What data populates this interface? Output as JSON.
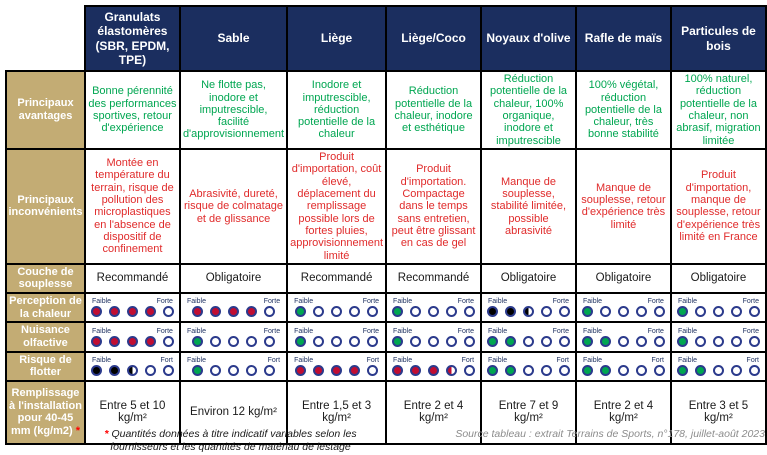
{
  "table": {
    "scale_left_label": "Faible",
    "columns": [
      "Granulats élastomères (SBR, EPDM, TPE)",
      "Sable",
      "Liège",
      "Liège/Coco",
      "Noyaux d'olive",
      "Rafle de maïs",
      "Particules de bois"
    ],
    "rows": [
      {
        "label": "Principaux avantages",
        "type": "text",
        "color": "green",
        "cells": [
          "Bonne pérennité des performances sportives, retour d'expérience",
          "Ne flotte pas, inodore et imputrescible, facilité d'approvisionnement",
          "Inodore et imputrescible, réduction potentielle de la chaleur",
          "Réduction potentielle de la chaleur, inodore et esthétique",
          "Réduction potentielle de la chaleur, 100% organique, inodore et imputrescible",
          "100% végétal, réduction potentielle de la chaleur, très bonne stabilité",
          "100% naturel, réduction potentielle de la chaleur, non abrasif, migration limitée"
        ]
      },
      {
        "label": "Principaux inconvénients",
        "type": "text",
        "color": "red",
        "cells": [
          "Montée en température du terrain, risque de pollution des microplastiques en l'absence de dispositif de confinement",
          "Abrasivité, dureté, risque de colmatage et de glissance",
          "Produit d'importation, coût élevé, déplacement du remplissage possible lors de fortes pluies, approvisionnement limité",
          "Produit d'importation. Compactage dans le temps sans entretien, peut être glissant en cas de gel",
          "Manque de souplesse, stabilité limitée, possible abrasivité",
          "Manque de souplesse, retour d'expérience très limité",
          "Produit d'importation, manque de souplesse, retour d'expérience très limité en France"
        ]
      },
      {
        "label": "Couche de souplesse",
        "type": "text",
        "color": "plain",
        "cells": [
          "Recommandé",
          "Obligatoire",
          "Recommandé",
          "Recommandé",
          "Obligatoire",
          "Obligatoire",
          "Obligatoire"
        ]
      },
      {
        "label": "Perception de la chaleur",
        "type": "scale",
        "right_label": "Forte",
        "cells": [
          [
            "R",
            "R",
            "R",
            "R",
            "O"
          ],
          [
            "R",
            "R",
            "R",
            "R",
            "O"
          ],
          [
            "G",
            "O",
            "O",
            "O",
            "O"
          ],
          [
            "G",
            "O",
            "O",
            "O",
            "O"
          ],
          [
            "K",
            "K",
            "HK",
            "O",
            "O"
          ],
          [
            "G",
            "O",
            "O",
            "O",
            "O"
          ],
          [
            "G",
            "O",
            "O",
            "O",
            "O"
          ]
        ]
      },
      {
        "label": "Nuisance olfactive",
        "type": "scale",
        "right_label": "Forte",
        "cells": [
          [
            "R",
            "R",
            "R",
            "R",
            "O"
          ],
          [
            "G",
            "O",
            "O",
            "O",
            "O"
          ],
          [
            "G",
            "O",
            "O",
            "O",
            "O"
          ],
          [
            "G",
            "O",
            "O",
            "O",
            "O"
          ],
          [
            "G",
            "G",
            "O",
            "O",
            "O"
          ],
          [
            "G",
            "G",
            "O",
            "O",
            "O"
          ],
          [
            "G",
            "O",
            "O",
            "O",
            "O"
          ]
        ]
      },
      {
        "label": "Risque de flotter",
        "type": "scale",
        "right_label": "Fort",
        "cells": [
          [
            "K",
            "K",
            "HK",
            "O",
            "O"
          ],
          [
            "G",
            "O",
            "O",
            "O",
            "O"
          ],
          [
            "R",
            "R",
            "R",
            "R",
            "O"
          ],
          [
            "R",
            "R",
            "R",
            "HR",
            "O"
          ],
          [
            "G",
            "G",
            "O",
            "O",
            "O"
          ],
          [
            "G",
            "G",
            "O",
            "O",
            "O"
          ],
          [
            "G",
            "G",
            "O",
            "O",
            "O"
          ]
        ]
      },
      {
        "label": "Remplissage à l'installation pour 40-45 mm (kg/m2)",
        "asterisk": "*",
        "type": "text",
        "color": "plain",
        "cells": [
          "Entre 5 et 10 kg/m²",
          "Environ 12 kg/m²",
          "Entre 1,5 et 3 kg/m²",
          "Entre 2 et 4 kg/m²",
          "Entre 7 et 9 kg/m²",
          "Entre 2 et 4 kg/m²",
          "Entre 3 et 5 kg/m²"
        ]
      }
    ]
  },
  "footnotes": {
    "left_asterisk": "*",
    "left_text": "Quantités données à titre indicatif variables selon les fournisseurs et les quantités de matériau de lestage",
    "right_text": "Source tableau : extrait Terrains de Sports, n°178, juillet-août 2023"
  },
  "colors": {
    "header_bg": "#1B2E5F",
    "row_label_bg": "#C3AC74",
    "advantage_text": "#00A651",
    "drawback_text": "#E02B2B",
    "dot_red": "#C00D32",
    "dot_green": "#00A651",
    "dot_black": "#000000",
    "dot_outline": "#2B3A8C",
    "source_text": "#8C8C8C",
    "asterisk": "#FF0000"
  }
}
